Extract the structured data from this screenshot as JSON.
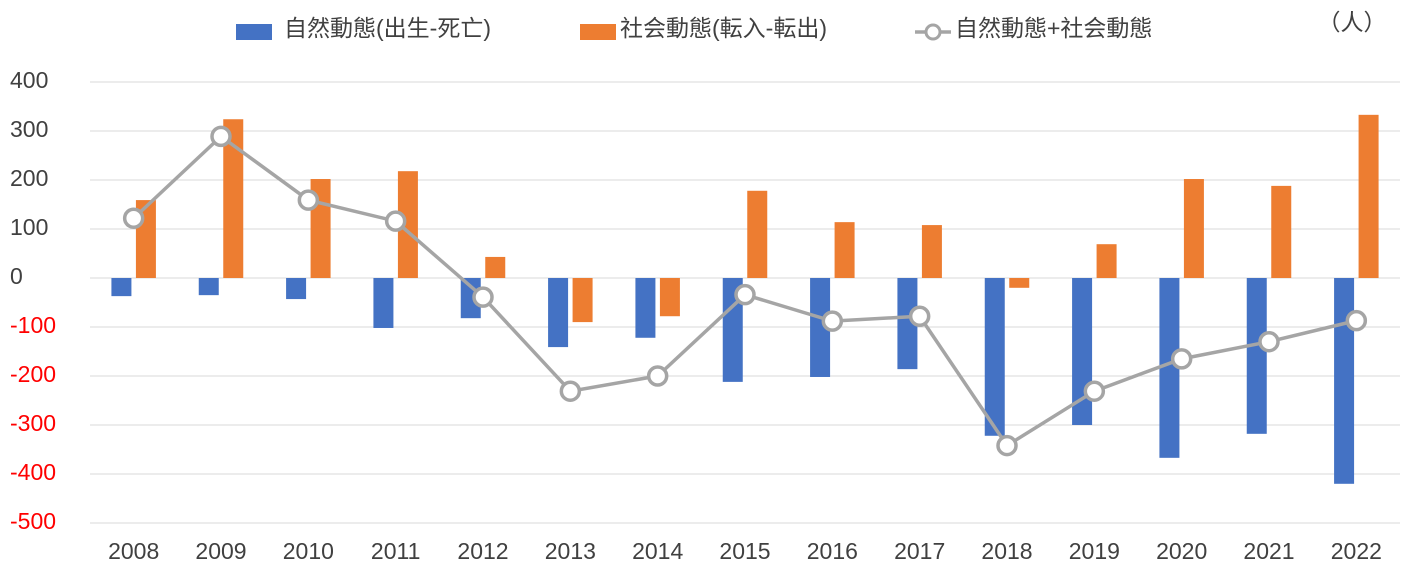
{
  "chart_data": {
    "type": "bar_line",
    "unit_label": "（人）",
    "categories": [
      "2008",
      "2009",
      "2010",
      "2011",
      "2012",
      "2013",
      "2014",
      "2015",
      "2016",
      "2017",
      "2018",
      "2019",
      "2020",
      "2021",
      "2022"
    ],
    "series": [
      {
        "name": "自然動態(出生-死亡)",
        "type": "bar",
        "color": "#4472c4",
        "values": [
          -37,
          -35,
          -43,
          -102,
          -82,
          -141,
          -122,
          -212,
          -202,
          -186,
          -322,
          -300,
          -367,
          -318,
          -420
        ]
      },
      {
        "name": "社会動態(転入-転出)",
        "type": "bar",
        "color": "#ed7d31",
        "values": [
          159,
          324,
          202,
          218,
          43,
          -90,
          -78,
          178,
          114,
          108,
          -20,
          69,
          202,
          188,
          333
        ]
      },
      {
        "name": "自然動態+社会動態",
        "type": "line",
        "color": "#a5a5a5",
        "values": [
          122,
          289,
          159,
          116,
          -39,
          -231,
          -200,
          -34,
          -88,
          -78,
          -342,
          -231,
          -165,
          -130,
          -87
        ]
      }
    ],
    "ylim": [
      -500,
      400
    ],
    "yticks": [
      -500,
      -400,
      -300,
      -200,
      -100,
      0,
      100,
      200,
      300,
      400
    ],
    "grid": true,
    "negative_tick_color": "#ff0000"
  }
}
